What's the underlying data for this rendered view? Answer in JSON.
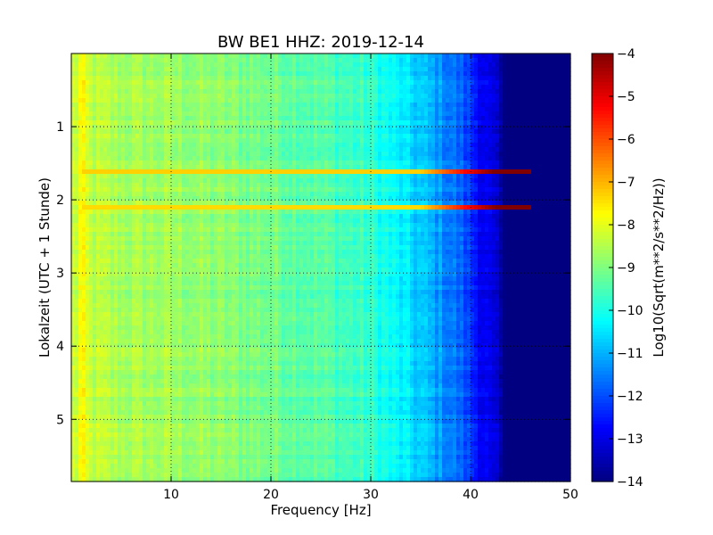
{
  "chart_data": {
    "type": "heatmap",
    "title": "BW BE1 HHZ: 2019-12-14",
    "xlabel": "Frequency [Hz]",
    "ylabel": "Lokalzeit (UTC + 1 Stunde)",
    "xlim": [
      0,
      50
    ],
    "ylim": [
      5.85,
      0.0
    ],
    "y_inverted": true,
    "x_ticks": [
      10,
      20,
      30,
      40,
      50
    ],
    "x_tick_labels": [
      "10",
      "20",
      "30",
      "40",
      "50"
    ],
    "y_ticks": [
      1,
      2,
      3,
      4,
      5
    ],
    "y_tick_labels": [
      "1",
      "2",
      "3",
      "4",
      "5"
    ],
    "grid": true,
    "colormap": "jet",
    "colorbar": {
      "label": "Log10(Sqrt(m**2/s**2/Hz))",
      "min": -14,
      "max": -4,
      "ticks": [
        -4,
        -5,
        -6,
        -7,
        -8,
        -9,
        -10,
        -11,
        -12,
        -13,
        -14
      ],
      "tick_labels": [
        "−4",
        "−5",
        "−6",
        "−7",
        "−8",
        "−9",
        "−10",
        "−11",
        "−12",
        "−13",
        "−14"
      ]
    },
    "spectrum_profile": {
      "frequency_hz": [
        0.5,
        1,
        2,
        5,
        10,
        15,
        20,
        25,
        30,
        33,
        36,
        39,
        41,
        42.5,
        43.5,
        45,
        50
      ],
      "log10_amplitude": [
        -8.3,
        -7.8,
        -8.4,
        -8.6,
        -8.7,
        -8.9,
        -9.1,
        -9.4,
        -9.8,
        -10.4,
        -11.0,
        -11.8,
        -12.7,
        -13.3,
        -14.0,
        -14.0,
        -14.0
      ]
    },
    "events": [
      {
        "time_h": 1.6,
        "log10_amplitude": -7.3,
        "extent_hz": [
          1,
          46
        ]
      },
      {
        "time_h": 2.1,
        "log10_amplitude": -7.4,
        "extent_hz": [
          1,
          46
        ]
      }
    ]
  }
}
